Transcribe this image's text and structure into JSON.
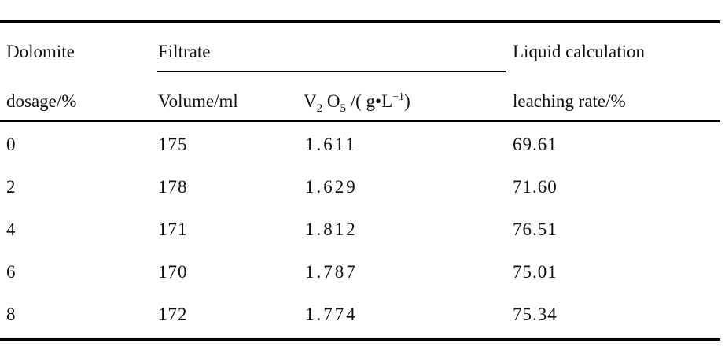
{
  "table": {
    "header": {
      "dolomite_line1": "Dolomite",
      "dolomite_line2": "dosage/%",
      "filtrate": "Filtrate",
      "volume": "Volume/ml",
      "v2o5_prefix": "V",
      "v2o5_sub1": "2",
      "v2o5_mid": "O",
      "v2o5_sub2": "5",
      "v2o5_unit_a": "/( g•L",
      "v2o5_sup": "−1",
      "v2o5_unit_b": ")",
      "leach_line1": "Liquid calculation",
      "leach_line2": "leaching rate/%"
    },
    "rows": [
      {
        "dosage": "0",
        "volume": "175",
        "v2o5": "1.611",
        "rate": "69.61"
      },
      {
        "dosage": "2",
        "volume": "178",
        "v2o5": "1.629",
        "rate": "71.60"
      },
      {
        "dosage": "4",
        "volume": "171",
        "v2o5": "1.812",
        "rate": "76.51"
      },
      {
        "dosage": "6",
        "volume": "170",
        "v2o5": "1.787",
        "rate": "75.01"
      },
      {
        "dosage": "8",
        "volume": "172",
        "v2o5": "1.774",
        "rate": "75.34"
      }
    ]
  }
}
